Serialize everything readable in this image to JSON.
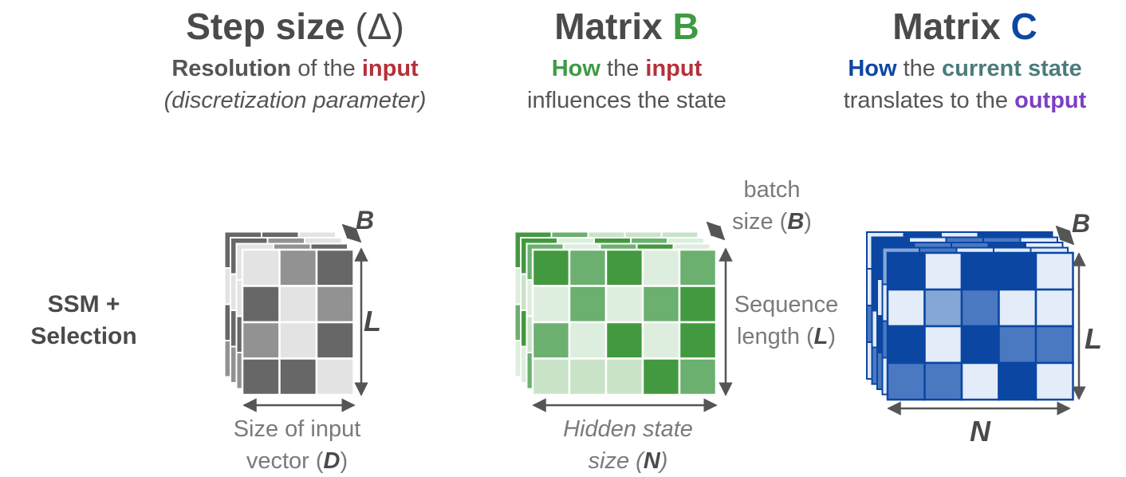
{
  "columns": [
    {
      "title_main": "Step size",
      "title_symbol": "(Δ)",
      "sub_line1_parts": [
        {
          "text": "Resolution",
          "style": "bold-gray"
        },
        {
          "text": " of the ",
          "style": "plain"
        },
        {
          "text": "input",
          "style": "bold-red"
        }
      ],
      "sub_line2": "(discretization parameter)"
    },
    {
      "title_main": "Matrix",
      "title_symbol": "B",
      "sub_line1_parts": [
        {
          "text": "How",
          "style": "bold-green"
        },
        {
          "text": " the ",
          "style": "plain"
        },
        {
          "text": "input",
          "style": "bold-red"
        }
      ],
      "sub_line2": "influences the state"
    },
    {
      "title_main": "Matrix",
      "title_symbol": "C",
      "sub_line1_parts": [
        {
          "text": "How",
          "style": "bold-blue"
        },
        {
          "text": " the ",
          "style": "plain"
        },
        {
          "text": "current state",
          "style": "bold-teal"
        }
      ],
      "sub_line2_parts": [
        {
          "text": "translates to the ",
          "style": "plain"
        },
        {
          "text": "output",
          "style": "bold-purple"
        }
      ]
    }
  ],
  "row_label_line1": "SSM +",
  "row_label_line2": "Selection",
  "labels": {
    "delta_batch": "B",
    "delta_length": "L",
    "delta_width_line1": "Size of input",
    "delta_width_line2_prefix": "vector (",
    "delta_width_var": "D",
    "delta_width_line2_suffix": ")",
    "b_batch_line1": "batch",
    "b_batch_line2_prefix": "size (",
    "b_batch_var": "B",
    "b_batch_line2_suffix": ")",
    "b_length_line1": "Sequence",
    "b_length_line2_prefix": "length (",
    "b_length_var": "L",
    "b_length_line2_suffix": ")",
    "b_width_line1": "Hidden state",
    "b_width_line2_prefix": "size (",
    "b_width_var": "N",
    "b_width_line2_suffix": ")",
    "c_batch": "B",
    "c_length": "L",
    "c_width": "N"
  },
  "colors": {
    "title_gray": "#4a4a4a",
    "red": "#b5303a",
    "green": "#3f9a43",
    "blue": "#0d47a1",
    "teal": "#4a7c7c",
    "purple": "#7b3fc4",
    "delta_palette": [
      "#e3e3e3",
      "#929292",
      "#676767"
    ],
    "b_palette": [
      "#deeede",
      "#c9e3c9",
      "#6bb06f",
      "#43993f"
    ],
    "c_palette": [
      "#e3ecf8",
      "#84a7d7",
      "#4a79c2",
      "#0b46a3"
    ]
  },
  "grids": {
    "delta": [
      [
        0,
        1,
        2
      ],
      [
        2,
        0,
        1
      ],
      [
        1,
        0,
        2
      ],
      [
        2,
        2,
        0
      ]
    ],
    "b": [
      [
        3,
        2,
        3,
        0,
        2
      ],
      [
        0,
        2,
        0,
        2,
        3
      ],
      [
        2,
        0,
        3,
        0,
        3
      ],
      [
        1,
        1,
        1,
        3,
        2
      ]
    ],
    "c": [
      [
        3,
        0,
        3,
        3,
        0
      ],
      [
        0,
        1,
        2,
        0,
        0
      ],
      [
        3,
        0,
        3,
        2,
        2
      ],
      [
        2,
        2,
        0,
        3,
        0
      ]
    ]
  }
}
